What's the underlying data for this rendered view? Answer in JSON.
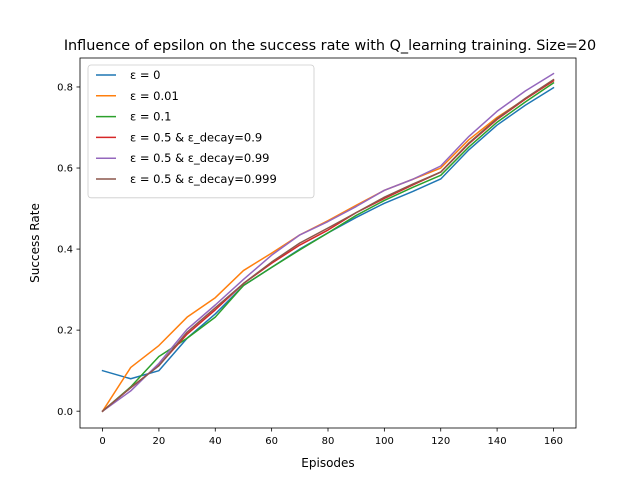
{
  "chart_data": {
    "type": "line",
    "title": "Influence of epsilon on the success rate with Q_learning training. Size=20",
    "xlabel": "Episodes",
    "ylabel": "Success Rate",
    "xlim": [
      -8,
      168
    ],
    "ylim": [
      -0.0415,
      0.8715
    ],
    "xticks": [
      0,
      20,
      40,
      60,
      80,
      100,
      120,
      140,
      160
    ],
    "xtick_labels": [
      "0",
      "20",
      "40",
      "60",
      "80",
      "100",
      "120",
      "140",
      "160"
    ],
    "yticks": [
      0.0,
      0.2,
      0.4,
      0.6,
      0.8
    ],
    "ytick_labels": [
      "0.0",
      "0.2",
      "0.4",
      "0.6",
      "0.8"
    ],
    "grid": false,
    "legend_position": "top-left",
    "x": [
      0,
      10,
      20,
      30,
      40,
      50,
      60,
      70,
      80,
      90,
      100,
      110,
      120,
      130,
      140,
      150,
      160
    ],
    "series": [
      {
        "name": "ε = 0",
        "color": "#1f77b4",
        "values": [
          0.1,
          0.08,
          0.1,
          0.18,
          0.24,
          0.31,
          0.355,
          0.4,
          0.44,
          0.478,
          0.513,
          0.542,
          0.573,
          0.645,
          0.706,
          0.755,
          0.798
        ]
      },
      {
        "name": "ε = 0.01",
        "color": "#ff7f0e",
        "values": [
          0.0,
          0.108,
          0.162,
          0.232,
          0.28,
          0.347,
          0.39,
          0.435,
          0.47,
          0.508,
          0.545,
          0.572,
          0.6,
          0.67,
          0.725,
          0.77,
          0.817
        ]
      },
      {
        "name": "ε = 0.1",
        "color": "#2ca02c",
        "values": [
          0.0,
          0.06,
          0.135,
          0.18,
          0.232,
          0.31,
          0.355,
          0.398,
          0.44,
          0.483,
          0.52,
          0.552,
          0.582,
          0.652,
          0.713,
          0.763,
          0.81
        ]
      },
      {
        "name": "ε = 0.5 & ε_decay=0.9",
        "color": "#d62728",
        "values": [
          0.0,
          0.058,
          0.113,
          0.19,
          0.25,
          0.315,
          0.365,
          0.41,
          0.447,
          0.49,
          0.525,
          0.558,
          0.59,
          0.66,
          0.72,
          0.77,
          0.815
        ]
      },
      {
        "name": "ε = 0.5 & ε_decay=0.99",
        "color": "#9467bd",
        "values": [
          0.0,
          0.05,
          0.118,
          0.202,
          0.262,
          0.325,
          0.385,
          0.435,
          0.468,
          0.505,
          0.545,
          0.572,
          0.605,
          0.678,
          0.74,
          0.79,
          0.833
        ]
      },
      {
        "name": "ε = 0.5 & ε_decay=0.999",
        "color": "#8c564b",
        "values": [
          0.0,
          0.058,
          0.112,
          0.195,
          0.255,
          0.315,
          0.368,
          0.415,
          0.452,
          0.49,
          0.528,
          0.56,
          0.59,
          0.662,
          0.722,
          0.772,
          0.818
        ]
      }
    ]
  }
}
